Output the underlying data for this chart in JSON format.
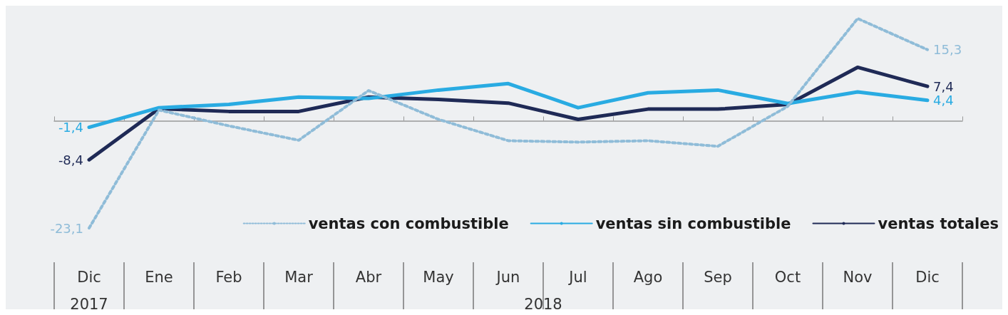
{
  "chart_data": {
    "type": "line",
    "categories": [
      "Dic",
      "Ene",
      "Feb",
      "Mar",
      "Abr",
      "May",
      "Jun",
      "Jul",
      "Ago",
      "Sep",
      "Oct",
      "Nov",
      "Dic"
    ],
    "series": [
      {
        "name": "ventas con combustible",
        "color": "#8fbcd8",
        "line_style": "dotted",
        "values": [
          -23.1,
          2.3,
          -1.1,
          -4.2,
          6.5,
          0.3,
          -4.3,
          -4.6,
          -4.3,
          -5.5,
          3.1,
          22.0,
          15.3
        ],
        "value_labels": [
          "-23,1",
          null,
          null,
          null,
          null,
          null,
          null,
          null,
          null,
          null,
          null,
          null,
          "15,3"
        ]
      },
      {
        "name": "ventas sin combustible",
        "color": "#29abe2",
        "line_style": "solid",
        "values": [
          -1.4,
          2.8,
          3.5,
          5.1,
          4.8,
          6.6,
          8.0,
          2.8,
          6.0,
          6.6,
          3.7,
          6.2,
          4.4
        ],
        "value_labels": [
          "-1,4",
          null,
          null,
          null,
          null,
          null,
          null,
          null,
          null,
          null,
          null,
          null,
          "4,4"
        ]
      },
      {
        "name": "ventas totales",
        "color": "#1f2a56",
        "line_style": "solid",
        "values": [
          -8.4,
          2.6,
          2.0,
          2.0,
          5.1,
          4.6,
          3.8,
          0.3,
          2.5,
          2.5,
          3.5,
          11.5,
          7.4
        ],
        "value_labels": [
          "-8,4",
          null,
          null,
          null,
          null,
          null,
          null,
          null,
          null,
          null,
          null,
          null,
          "7,4"
        ]
      }
    ],
    "tick_labels": "x",
    "grid": false,
    "legend": "bottom right",
    "marker": "none",
    "annotations": [
      "2017",
      "2018"
    ]
  }
}
